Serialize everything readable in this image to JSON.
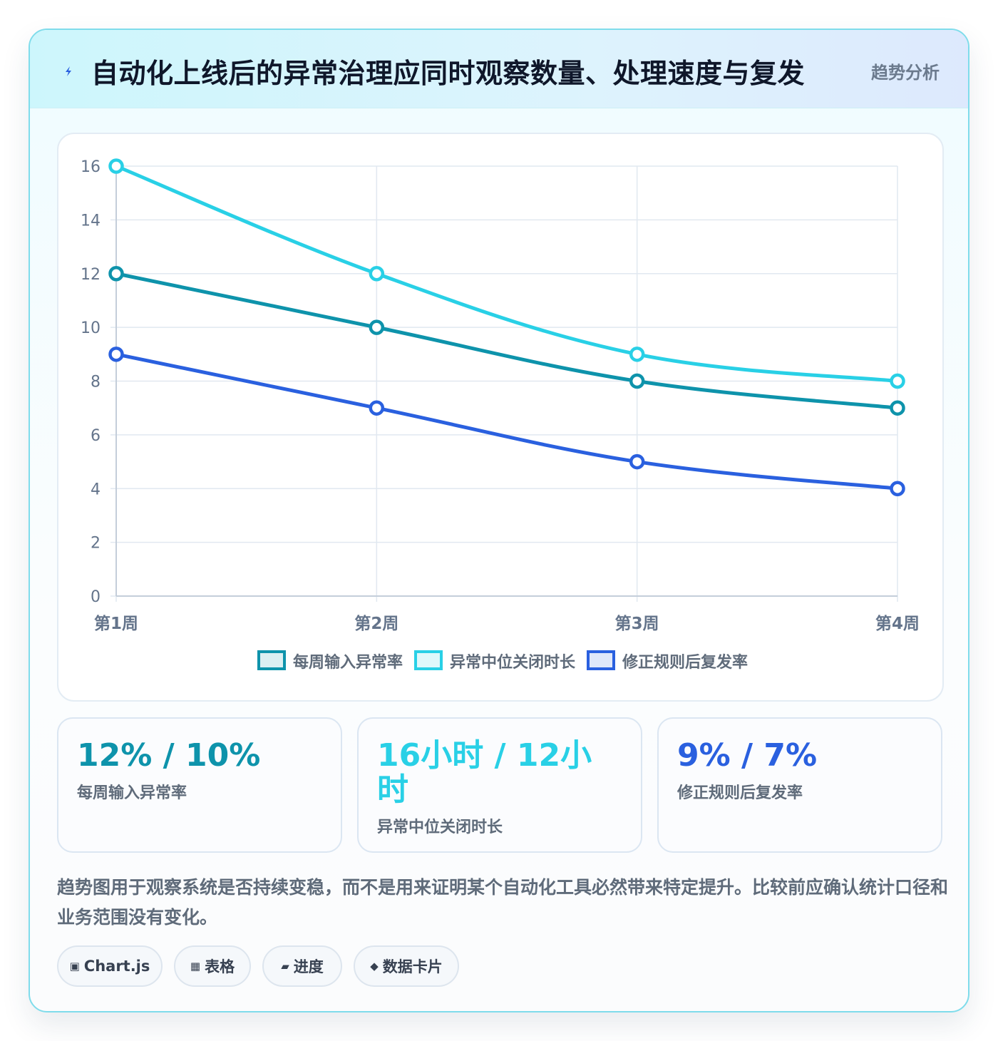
{
  "header": {
    "title": "自动化上线后的异常治理应同时观察数量、处理速度与复发",
    "tag": "趋势分析",
    "icon": "lightning-icon"
  },
  "colors": {
    "series1": "#0e93ab",
    "series2": "#29d0e6",
    "series3": "#2a60df",
    "grid": "#e1e8f0",
    "axis": "#c4ceda"
  },
  "chart_data": {
    "type": "line",
    "categories": [
      "第1周",
      "第2周",
      "第3周",
      "第4周"
    ],
    "series": [
      {
        "name": "每周输入异常率",
        "values": [
          12,
          10,
          8,
          7
        ],
        "color": "#0e93ab"
      },
      {
        "name": "异常中位关闭时长",
        "values": [
          16,
          12,
          9,
          8
        ],
        "color": "#29d0e6"
      },
      {
        "name": "修正规则后复发率",
        "values": [
          9,
          7,
          5,
          4
        ],
        "color": "#2a60df"
      }
    ],
    "yticks": [
      "0",
      "2",
      "4",
      "6",
      "8",
      "10",
      "12",
      "14",
      "16"
    ],
    "ylim": [
      0,
      16
    ],
    "grid": true,
    "legend": "bottom"
  },
  "stats": [
    {
      "value": "12% / 10%",
      "label": "每周输入异常率",
      "color": "#0e93ab"
    },
    {
      "value": "16小时 / 12小时",
      "label": "异常中位关闭时长",
      "color": "#29d0e6"
    },
    {
      "value": "9% / 7%",
      "label": "修正规则后复发率",
      "color": "#2a60df"
    }
  ],
  "note": "趋势图用于观察系统是否持续变稳，而不是用来证明某个自动化工具必然带来特定提升。比较前应确认统计口径和业务范围没有变化。",
  "chips": [
    {
      "icon": "▣",
      "label": "Chart.js"
    },
    {
      "icon": "▦",
      "label": "表格"
    },
    {
      "icon": "▰",
      "label": "进度"
    },
    {
      "icon": "◆",
      "label": "数据卡片"
    }
  ]
}
